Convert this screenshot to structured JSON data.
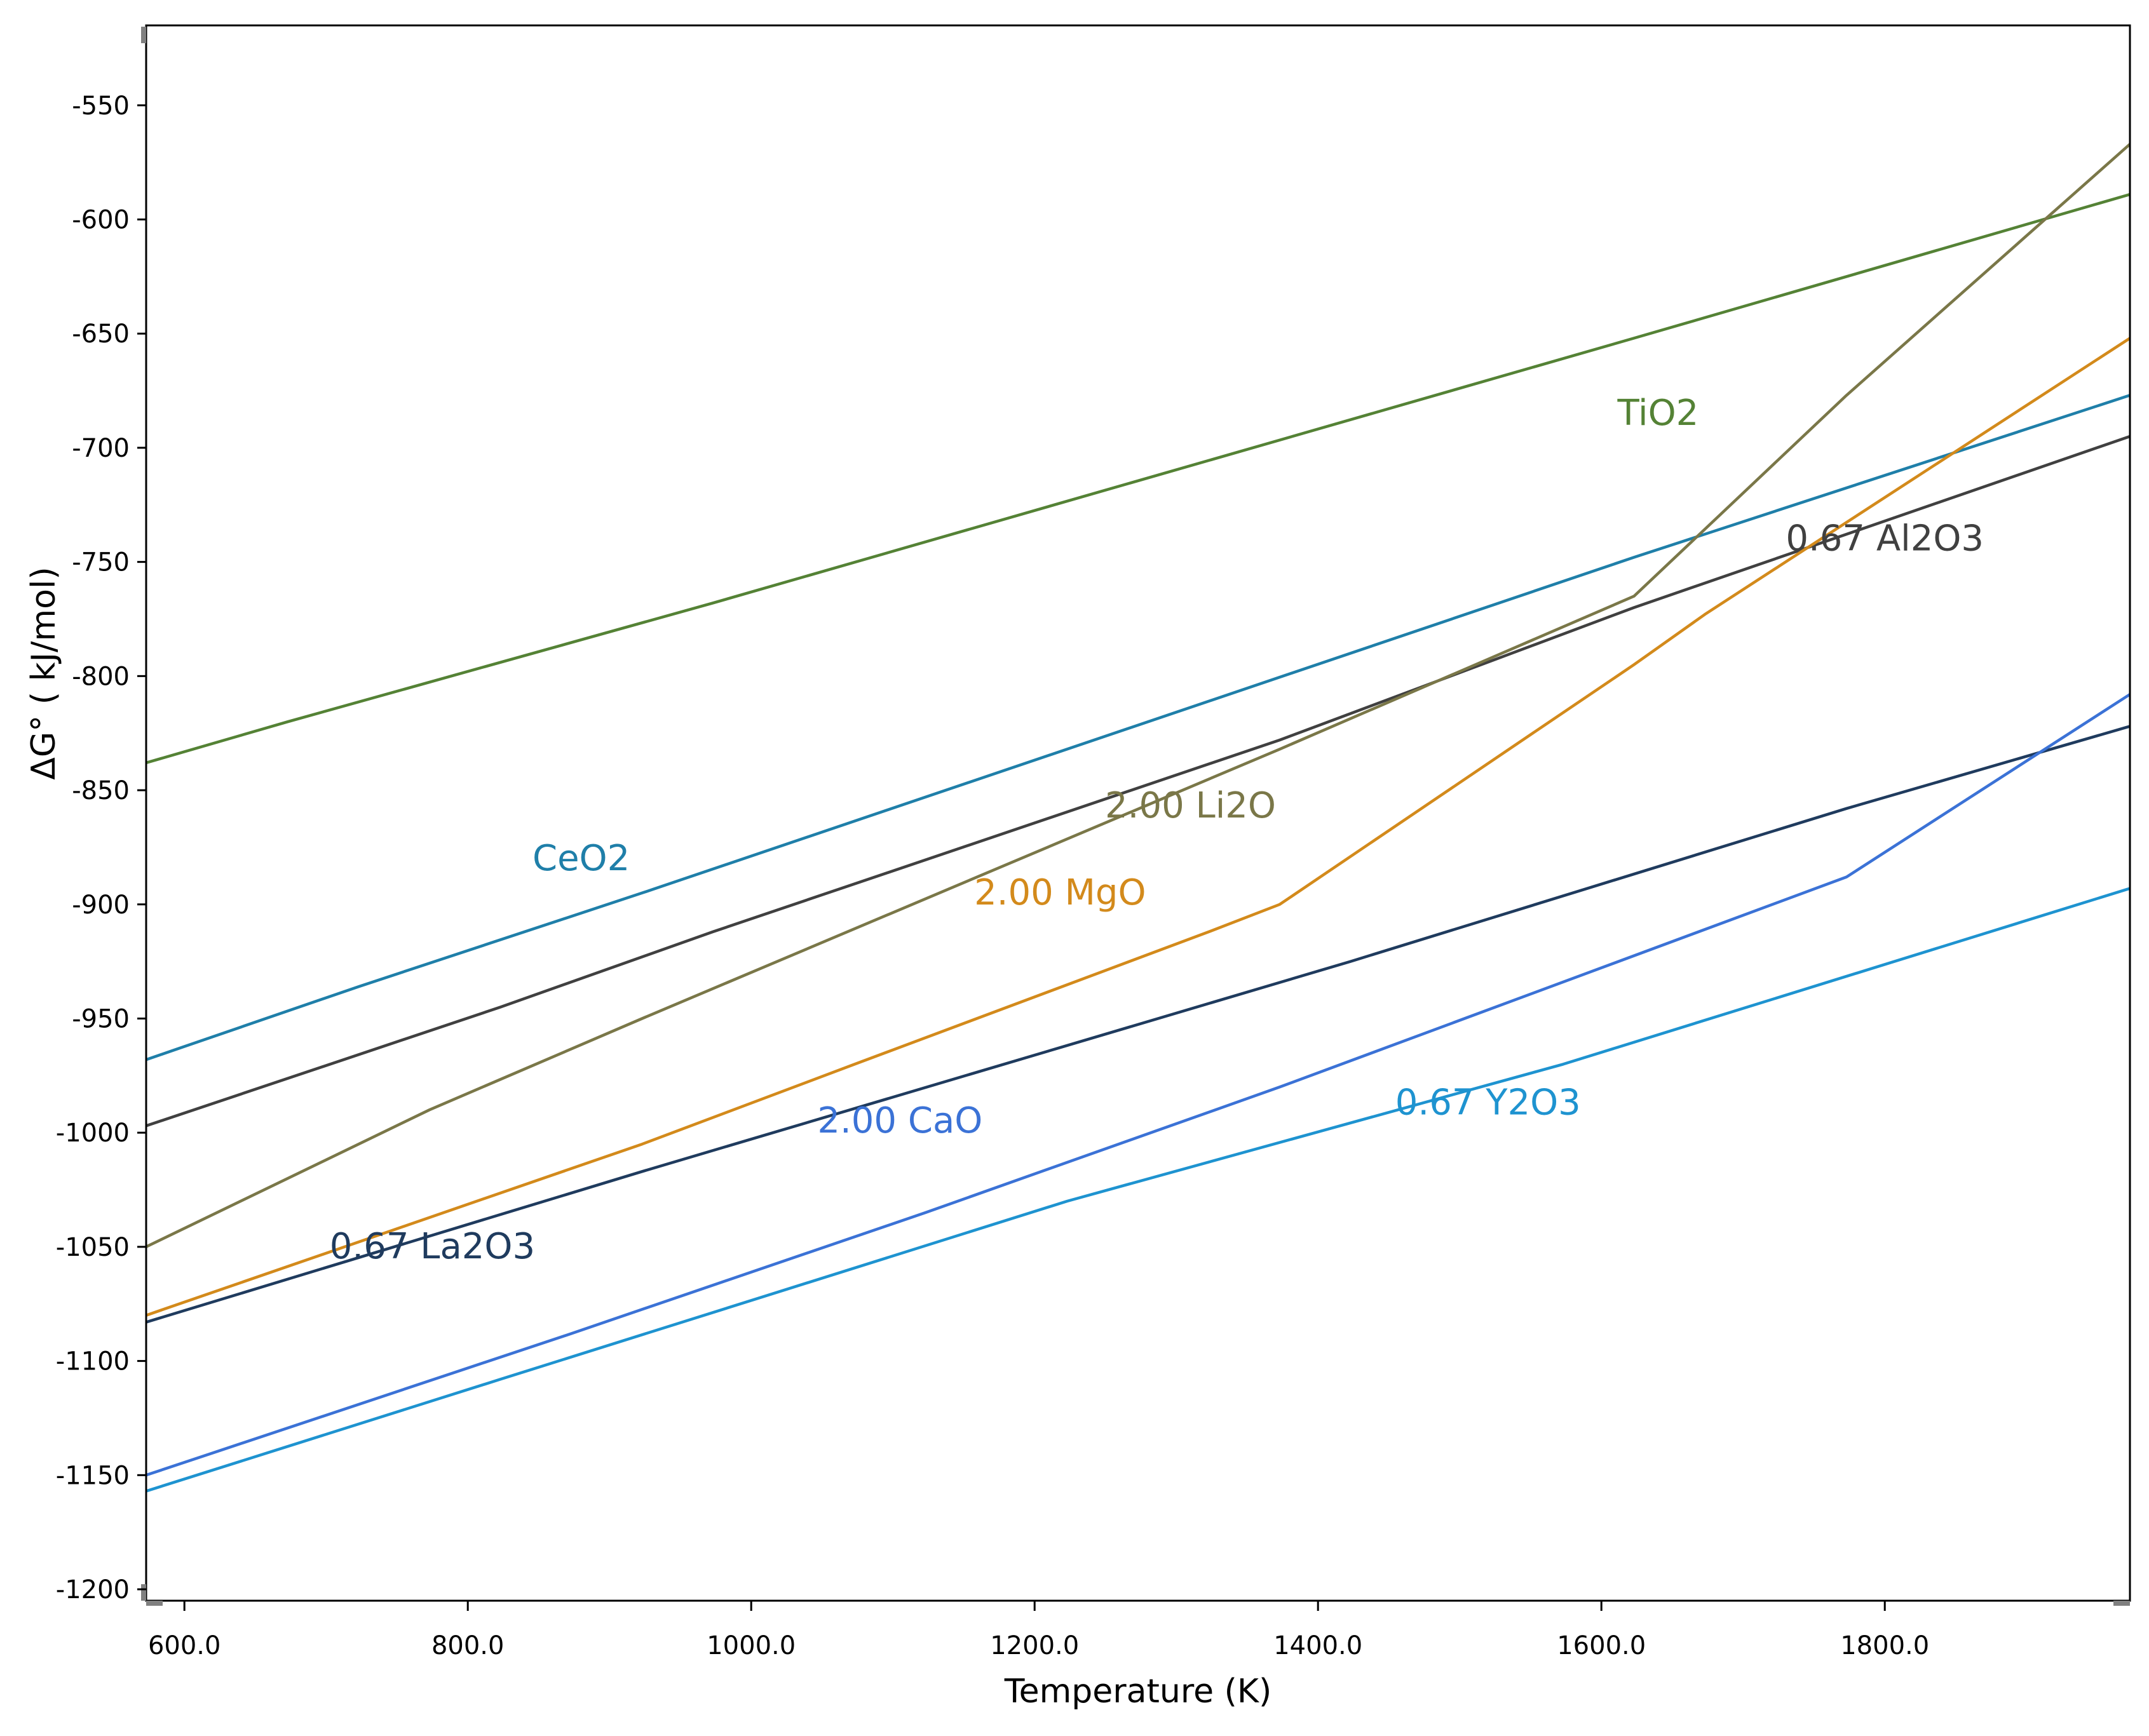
{
  "chart_data": {
    "type": "line",
    "title": "",
    "xlabel": "Temperature (K)",
    "ylabel": "ΔG° ( kJ/mol)",
    "xlim": [
      573,
      1973
    ],
    "ylim": [
      -1205,
      -515
    ],
    "xticks": [
      600,
      800,
      1000,
      1200,
      1400,
      1600,
      1800
    ],
    "xtick_labels": [
      "600.0",
      "800.0",
      "1000.0",
      "1200.0",
      "1400.0",
      "1600.0",
      "1800.0"
    ],
    "yticks": [
      -550,
      -600,
      -650,
      -700,
      -750,
      -800,
      -850,
      -900,
      -950,
      -1000,
      -1050,
      -1100,
      -1150,
      -1200
    ],
    "ytick_labels": [
      "-550",
      "-600",
      "-650",
      "-700",
      "-750",
      "-800",
      "-850",
      "-900",
      "-950",
      "-1000",
      "-1050",
      "-1100",
      "-1150",
      "-1200"
    ],
    "grid": false,
    "series": [
      {
        "name": "TiO2",
        "label": "TiO2",
        "color": "#548235",
        "x": [
          573,
          673,
          973,
          1623,
          1973
        ],
        "y": [
          -838,
          -820,
          -768,
          -652,
          -589
        ],
        "label_at": [
          1640,
          -690
        ]
      },
      {
        "name": "CeO2",
        "label": "CeO2",
        "color": "#1f7fa9",
        "x": [
          573,
          723,
          923,
          1623,
          1973
        ],
        "y": [
          -968,
          -936,
          -895,
          -748,
          -677
        ],
        "label_at": [
          880,
          -885
        ]
      },
      {
        "name": "0.67 Al2O3",
        "label": "0.67 Al2O3",
        "color": "#404040",
        "x": [
          573,
          823,
          973,
          1373,
          1623,
          1973
        ],
        "y": [
          -997,
          -945,
          -912,
          -828,
          -770,
          -695
        ],
        "label_at": [
          1800,
          -745
        ]
      },
      {
        "name": "2.00 Li2O",
        "label": "2.00 Li2O",
        "color": "#7a7748",
        "x": [
          573,
          773,
          923,
          1373,
          1623,
          1773,
          1973
        ],
        "y": [
          -1050,
          -990,
          -950,
          -832,
          -765,
          -677,
          -567
        ],
        "label_at": [
          1310,
          -862
        ]
      },
      {
        "name": "2.00 MgO",
        "label": "2.00 MgO",
        "color": "#d38a1b",
        "x": [
          573,
          923,
          1073,
          1323,
          1373,
          1623,
          1673,
          1973
        ],
        "y": [
          -1080,
          -1005,
          -970,
          -912,
          -900,
          -795,
          -773,
          -652
        ],
        "label_at": [
          1218,
          -900
        ]
      },
      {
        "name": "0.67 La2O3",
        "label": "0.67 La2O3",
        "color": "#1f3b5e",
        "x": [
          573,
          923,
          1423,
          1773,
          1973
        ],
        "y": [
          -1083,
          -1017,
          -925,
          -858,
          -822
        ],
        "label_at": [
          775,
          -1055
        ]
      },
      {
        "name": "2.00 CaO",
        "label": "2.00 CaO",
        "color": "#3b72d6",
        "x": [
          573,
          873,
          1123,
          1373,
          1773,
          1973
        ],
        "y": [
          -1150,
          -1088,
          -1035,
          -980,
          -888,
          -808
        ],
        "label_at": [
          1105,
          -1000
        ]
      },
      {
        "name": "0.67 Y2O3",
        "label": "0.67 Y2O3",
        "color": "#1e93d0",
        "x": [
          573,
          823,
          1223,
          1573,
          1973
        ],
        "y": [
          -1157,
          -1108,
          -1030,
          -970,
          -893
        ],
        "label_at": [
          1520,
          -992
        ]
      }
    ]
  }
}
